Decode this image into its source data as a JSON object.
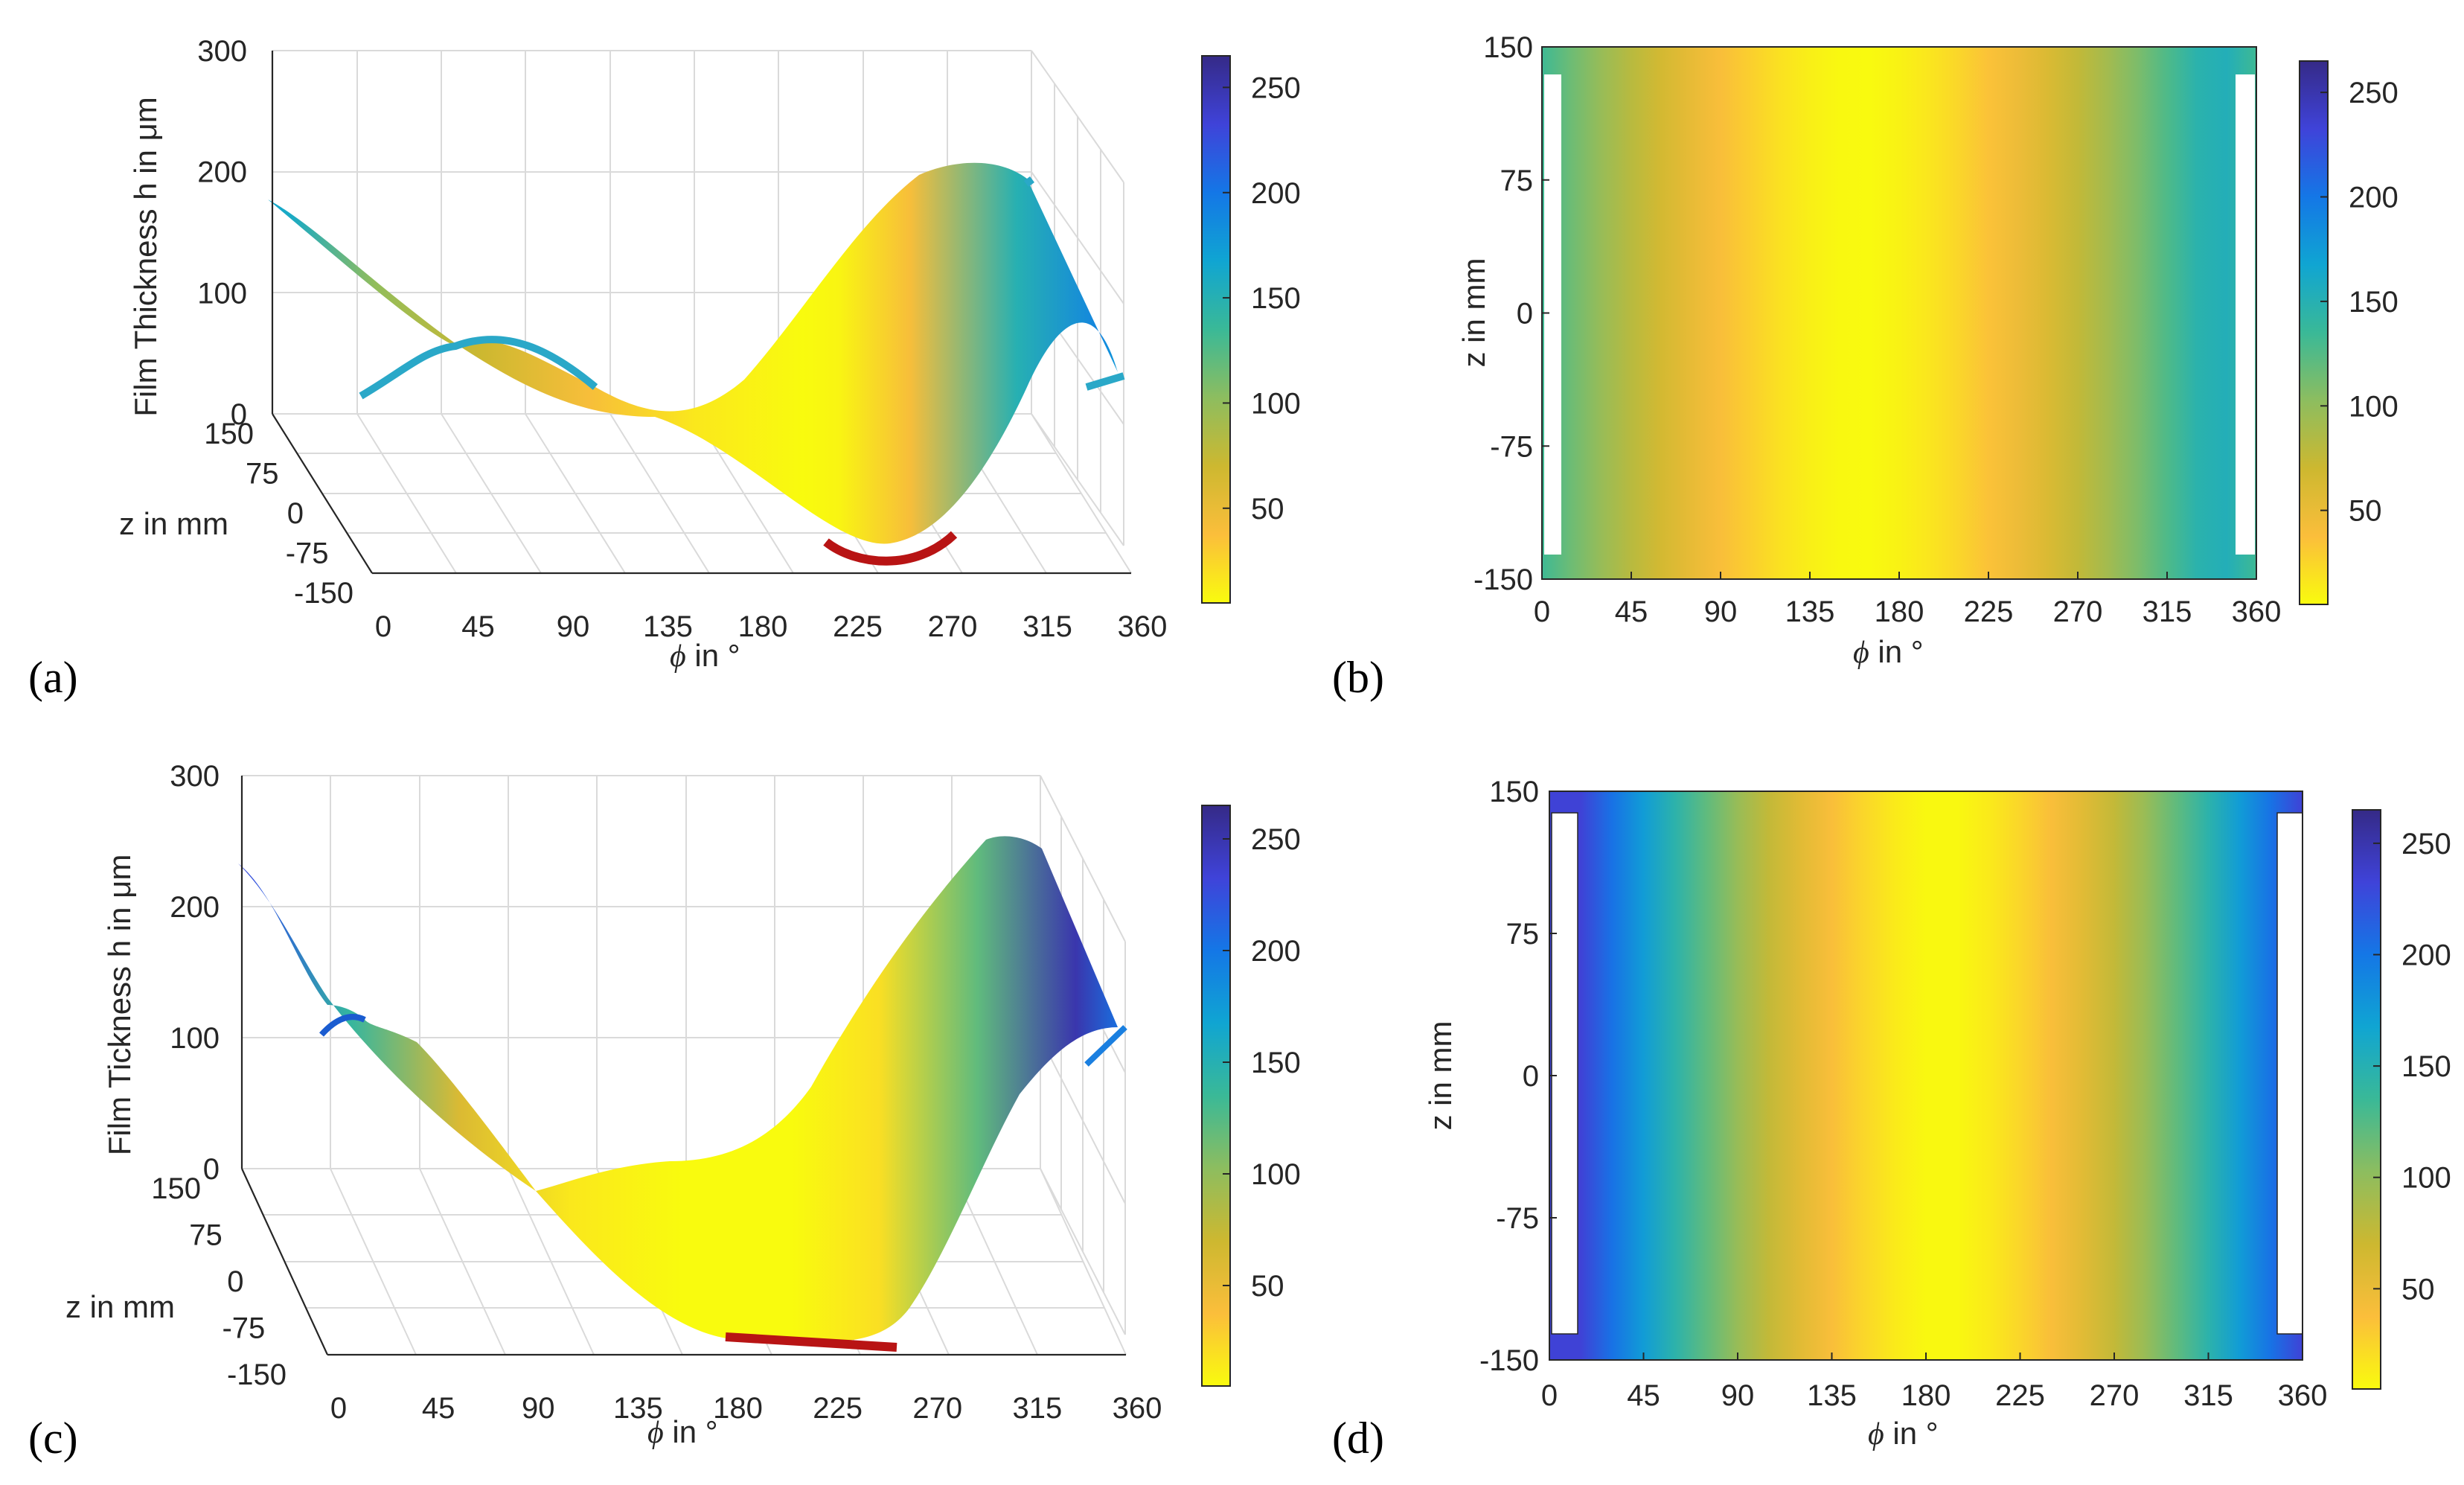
{
  "chart_data": [
    {
      "panel": "(a)",
      "type": "surface3d",
      "zlabel": "Film Thickness h in μm",
      "ylabel": "z in mm",
      "xlabel_symbol": "ϕ",
      "xlabel_text": " in °",
      "x_ticks": [
        "0",
        "45",
        "90",
        "135",
        "180",
        "225",
        "270",
        "315",
        "360"
      ],
      "y_ticks": [
        "-150",
        "-75",
        "0",
        "75",
        "150"
      ],
      "z_ticks": [
        "0",
        "100",
        "200",
        "300"
      ],
      "xlim": [
        0,
        360
      ],
      "ylim": [
        -150,
        150
      ],
      "zlim": [
        0,
        300
      ],
      "min_film_region_deg": [
        205,
        265
      ],
      "colorbar": {
        "ticks": [
          "50",
          "100",
          "150",
          "200",
          "250"
        ],
        "range": [
          5,
          265
        ]
      },
      "surface_profile": {
        "phi": [
          0,
          10,
          45,
          90,
          135,
          180,
          225,
          240,
          270,
          315,
          350,
          360
        ],
        "h": [
          165,
          160,
          100,
          70,
          40,
          15,
          5,
          8,
          40,
          150,
          190,
          170
        ]
      }
    },
    {
      "panel": "(b)",
      "type": "heatmap",
      "xlabel_symbol": "ϕ",
      "xlabel_text": " in °",
      "ylabel": "z in mm",
      "x_ticks": [
        "0",
        "45",
        "90",
        "135",
        "180",
        "225",
        "270",
        "315",
        "360"
      ],
      "y_ticks": [
        "150",
        "75",
        "0",
        "-75",
        "-150"
      ],
      "xlim": [
        0,
        360
      ],
      "ylim": [
        -150,
        150
      ],
      "colorbar": {
        "ticks": [
          "50",
          "100",
          "150",
          "200",
          "250"
        ],
        "range": [
          5,
          265
        ]
      },
      "min_band_deg": {
        "z_top": 180,
        "z_bottom": 140
      },
      "edge_h": 160
    },
    {
      "panel": "(c)",
      "type": "surface3d",
      "zlabel": "Film Tickness h in μm",
      "ylabel": "z in mm",
      "xlabel_symbol": "ϕ",
      "xlabel_text": " in °",
      "x_ticks": [
        "0",
        "45",
        "90",
        "135",
        "180",
        "225",
        "270",
        "315",
        "360"
      ],
      "y_ticks": [
        "-150",
        "-75",
        "0",
        "75",
        "150"
      ],
      "z_ticks": [
        "0",
        "100",
        "200",
        "300"
      ],
      "xlim": [
        0,
        360
      ],
      "ylim": [
        -150,
        150
      ],
      "zlim": [
        0,
        300
      ],
      "min_film_region_deg": [
        175,
        245
      ],
      "colorbar": {
        "ticks": [
          "50",
          "100",
          "150",
          "200",
          "250"
        ],
        "range": [
          5,
          265
        ]
      },
      "surface_profile": {
        "phi": [
          0,
          10,
          45,
          90,
          135,
          180,
          225,
          260,
          300,
          340,
          360
        ],
        "h": [
          230,
          220,
          140,
          60,
          15,
          5,
          5,
          20,
          120,
          250,
          200
        ]
      }
    },
    {
      "panel": "(d)",
      "type": "heatmap",
      "xlabel_symbol": "ϕ",
      "xlabel_text": " in °",
      "ylabel": "z in mm",
      "x_ticks": [
        "0",
        "45",
        "90",
        "135",
        "180",
        "225",
        "270",
        "315",
        "360"
      ],
      "y_ticks": [
        "150",
        "75",
        "0",
        "-75",
        "-150"
      ],
      "xlim": [
        0,
        360
      ],
      "ylim": [
        -150,
        150
      ],
      "colorbar": {
        "ticks": [
          "50",
          "100",
          "150",
          "200",
          "250"
        ],
        "range": [
          5,
          265
        ]
      },
      "min_band_deg": {
        "z_top": 195,
        "z_bottom": 180
      },
      "edge_h": 250
    }
  ],
  "colormap_parula_reversed": [
    "#f9fb0e",
    "#fbbe3b",
    "#cdb830",
    "#8dbd5f",
    "#3ab997",
    "#10a5d2",
    "#1477e6",
    "#3f43d9",
    "#352a87"
  ],
  "accent_red": "#b81414"
}
